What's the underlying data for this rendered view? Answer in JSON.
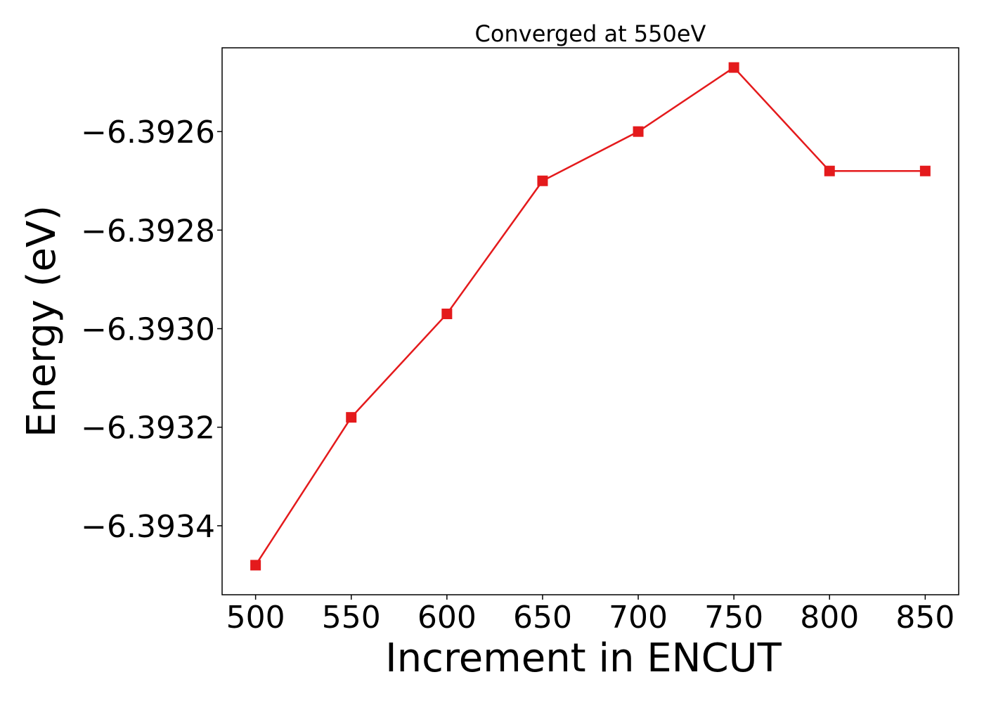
{
  "chart_data": {
    "type": "line",
    "title": "Converged at 550eV",
    "xlabel": "Increment in ENCUT",
    "ylabel": "Energy (eV)",
    "x": [
      500,
      550,
      600,
      650,
      700,
      750,
      800,
      850
    ],
    "xticks": [
      "500",
      "550",
      "600",
      "650",
      "700",
      "750",
      "800",
      "850"
    ],
    "yticks": [
      -6.3934,
      -6.3932,
      -6.393,
      -6.3928,
      -6.3926
    ],
    "ytick_labels": [
      "−6.3934",
      "−6.3932",
      "−6.3930",
      "−6.3928",
      "−6.3926"
    ],
    "xlim": [
      482.5,
      867.5
    ],
    "ylim": [
      -6.39354,
      -6.39243
    ],
    "series": [
      {
        "marker": "square",
        "color": "#e41a1c",
        "values": [
          -6.39348,
          -6.39318,
          -6.39297,
          -6.3927,
          -6.3926,
          -6.39247,
          -6.39268,
          -6.39268
        ]
      }
    ],
    "grid": false,
    "legend": "none"
  }
}
